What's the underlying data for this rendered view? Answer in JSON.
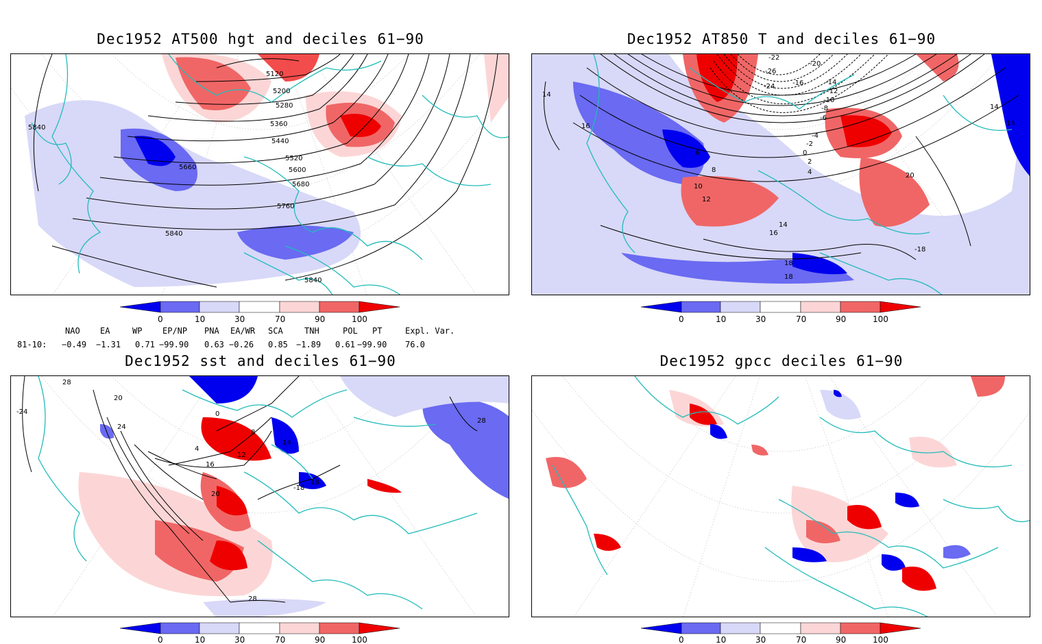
{
  "panels": [
    {
      "title": "Dec1952 AT500 hgt and deciles 61−90",
      "contour_labels": [
        "5120",
        "5200",
        "5280",
        "5360",
        "5440",
        "5520",
        "5600",
        "5680",
        "5760",
        "5840",
        "5660",
        "5840",
        "5840"
      ]
    },
    {
      "title": "Dec1952 AT850 T and deciles 61−90",
      "contour_labels": [
        "-22",
        "-20",
        "-26",
        "-24",
        "-16",
        "-14",
        "-12",
        "-10",
        "-8",
        "-6",
        "-4",
        "-2",
        "0",
        "2",
        "4",
        "6",
        "8",
        "10",
        "12",
        "14",
        "16",
        "18",
        "20",
        "14",
        "14",
        "14",
        "16",
        "18",
        "-18"
      ]
    },
    {
      "title": "Dec1952 sst and deciles 61−90",
      "contour_labels": [
        "28",
        "20",
        "24",
        "-24",
        "0",
        "4",
        "8",
        "12",
        "16",
        "20",
        "-18",
        "18",
        "14",
        "28",
        "28"
      ]
    },
    {
      "title": "Dec1952 gpcc deciles 61−90",
      "contour_labels": []
    }
  ],
  "colorbar": {
    "ticks": [
      "0",
      "10",
      "30",
      "70",
      "90",
      "100"
    ],
    "colors": [
      "#0000ee",
      "#6a6af2",
      "#d8d8f8",
      "#ffffff",
      "#fcd6d6",
      "#f06666",
      "#ee0000"
    ]
  },
  "indices": {
    "headers": [
      "NAO",
      "EA",
      "WP",
      "EP/NP",
      "PNA",
      "EA/WR",
      "SCA",
      "TNH",
      "POL",
      "PT",
      "Expl. Var."
    ],
    "row_label": "81-10:",
    "values": [
      "−0.49",
      "−1.31",
      "0.71",
      "−99.90",
      "0.63",
      "−0.26",
      "0.85",
      "−1.89",
      "0.61",
      "−99.90",
      "76.0"
    ]
  },
  "colors": {
    "coast": "#22bbbb",
    "grid": "#999999",
    "contour": "#000000"
  }
}
